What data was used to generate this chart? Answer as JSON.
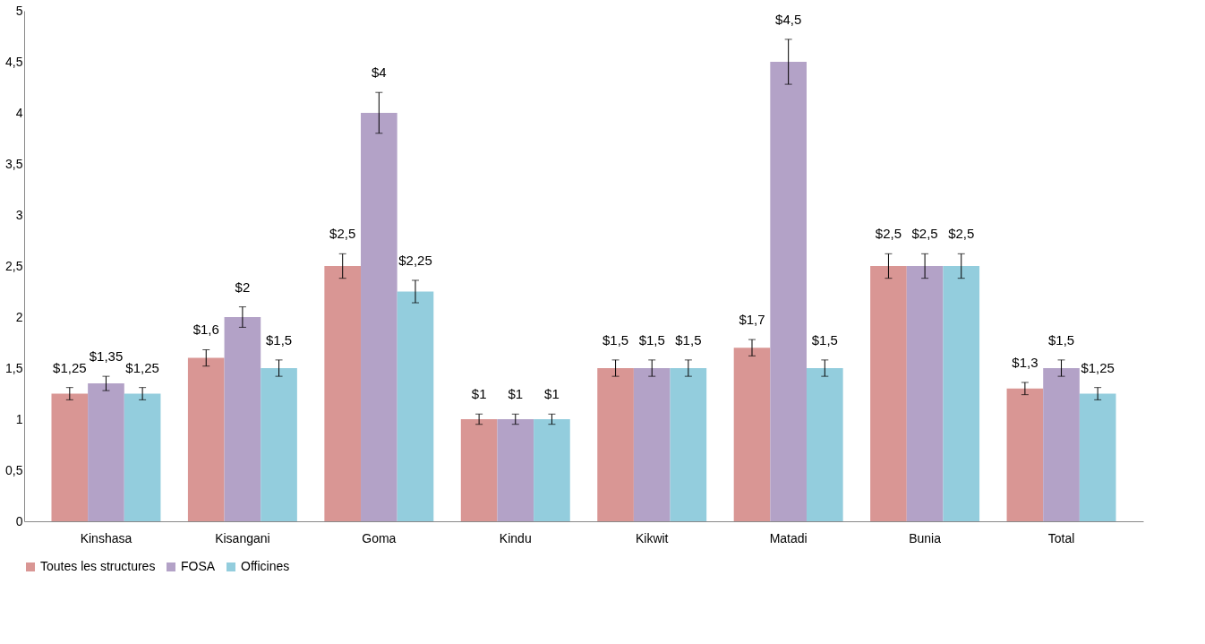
{
  "chart_data": {
    "type": "bar",
    "categories": [
      "Kinshasa",
      "Kisangani",
      "Goma",
      "Kindu",
      "Kikwit",
      "Matadi",
      "Bunia",
      "Total"
    ],
    "series": [
      {
        "name": "Toutes les structures",
        "color": "#d99694",
        "values": [
          1.25,
          1.6,
          2.5,
          1,
          1.5,
          1.7,
          2.5,
          1.3
        ],
        "errors": [
          0.06,
          0.08,
          0.12,
          0.05,
          0.08,
          0.08,
          0.12,
          0.06
        ],
        "value_labels": [
          "$1,25",
          "$1,6",
          "$2,5",
          "$1",
          "$1,5",
          "$1,7",
          "$2,5",
          "$1,3"
        ]
      },
      {
        "name": "FOSA",
        "color": "#b3a2c7",
        "values": [
          1.35,
          2,
          4,
          1,
          1.5,
          4.5,
          2.5,
          1.5
        ],
        "errors": [
          0.07,
          0.1,
          0.2,
          0.05,
          0.08,
          0.22,
          0.12,
          0.08
        ],
        "value_labels": [
          "$1,35",
          "$2",
          "$4",
          "$1",
          "$1,5",
          "$4,5",
          "$2,5",
          "$1,5"
        ]
      },
      {
        "name": "Officines",
        "color": "#93cddd",
        "values": [
          1.25,
          1.5,
          2.25,
          1,
          1.5,
          1.5,
          2.5,
          1.25
        ],
        "errors": [
          0.06,
          0.08,
          0.11,
          0.05,
          0.08,
          0.08,
          0.12,
          0.06
        ],
        "value_labels": [
          "$1,25",
          "$1,5",
          "$2,25",
          "$1",
          "$1,5",
          "$1,5",
          "$2,5",
          "$1,25"
        ]
      }
    ],
    "ylim": [
      0,
      5
    ],
    "yticks": [
      0,
      {
        "value": 0.5,
        "label": "0,5"
      },
      1,
      {
        "value": 1.5,
        "label": "1,5"
      },
      2,
      {
        "value": 2.5,
        "label": "2,5"
      },
      3,
      {
        "value": 3.5,
        "label": "3,5"
      },
      4,
      {
        "value": 4.5,
        "label": "4,5"
      },
      5
    ],
    "grid": false,
    "legend": "bottom"
  }
}
